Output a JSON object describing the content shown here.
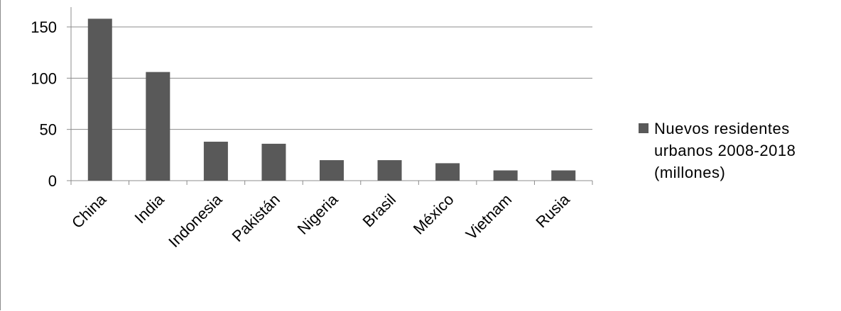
{
  "chart_data": {
    "type": "bar",
    "categories": [
      "China",
      "India",
      "Indonesia",
      "Pakistán",
      "Nigeria",
      "Brasil",
      "México",
      "Vietnam",
      "Rusia"
    ],
    "series": [
      {
        "name": "Nuevos residentes urbanos 2008-2018 (millones)",
        "values": [
          158,
          106,
          38,
          36,
          20,
          20,
          17,
          10,
          10
        ]
      }
    ],
    "y_ticks": [
      "0",
      "50",
      "100",
      "150"
    ],
    "ylim": [
      0,
      150
    ],
    "grid": true,
    "legend_position": "right",
    "colors": {
      "bar": "#595959",
      "grid": "#8c8c8c",
      "axis": "#8c8c8c"
    }
  }
}
